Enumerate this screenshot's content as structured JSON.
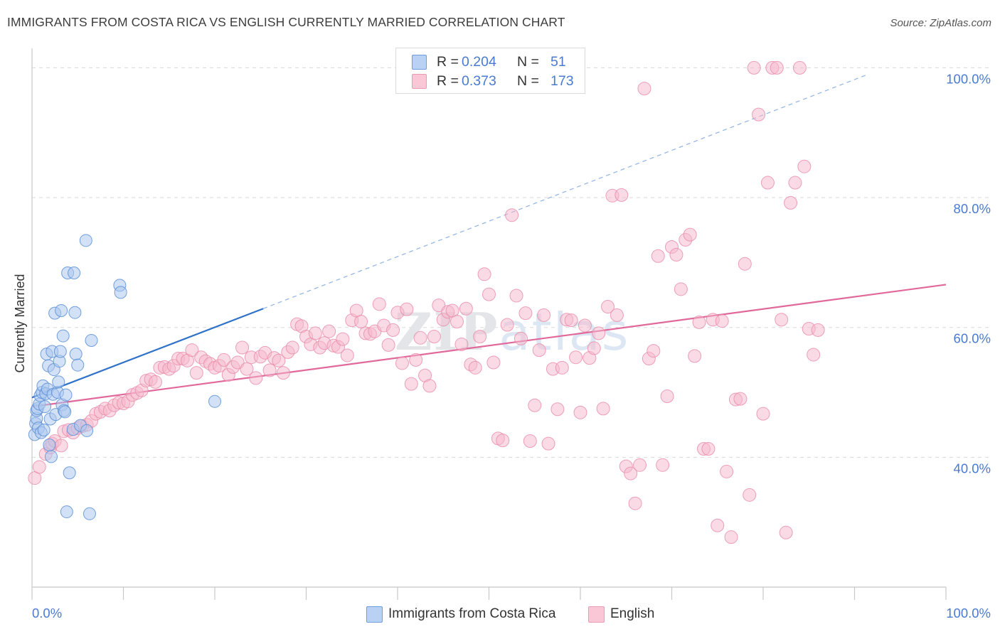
{
  "title": "IMMIGRANTS FROM COSTA RICA VS ENGLISH CURRENTLY MARRIED CORRELATION CHART",
  "source": "Source: ZipAtlas.com",
  "watermark": "ZIPatlas",
  "legend": {
    "rows": [
      {
        "r_label": "R =",
        "r_value": "0.204",
        "n_label": "N =",
        "n_value": "51"
      },
      {
        "r_label": "R =",
        "r_value": "0.373",
        "n_label": "N =",
        "n_value": "173"
      }
    ]
  },
  "bottom_legend": [
    "Immigrants from Costa Rica",
    "English"
  ],
  "colors": {
    "blue_fill": "#adc8ef",
    "blue_stroke": "#5b8fd6",
    "blue_line": "#2f72c8",
    "pink_fill": "#f6b8cc",
    "pink_stroke": "#e98aa8",
    "pink_line": "#e0689a",
    "tick_label": "#4a7bd0",
    "grid": "#d9d9d9"
  },
  "chart_data": {
    "type": "scatter",
    "title": "IMMIGRANTS FROM COSTA RICA VS ENGLISH CURRENTLY MARRIED CORRELATION CHART",
    "xlabel": "",
    "ylabel": "Currently Married",
    "xlim": [
      0,
      100
    ],
    "ylim": [
      20,
      103
    ],
    "x_tick_labels": [
      "0.0%",
      "100.0%"
    ],
    "y_ticks": [
      40,
      60,
      80,
      100
    ],
    "y_tick_labels": [
      "40.0%",
      "60.0%",
      "80.0%",
      "100.0%"
    ],
    "grid": "horizontal dashed",
    "series": [
      {
        "name": "Immigrants from Costa Rica",
        "r": 0.204,
        "n": 51,
        "trend": {
          "x": [
            0,
            25.3
          ],
          "y": [
            49.2,
            62.9
          ],
          "extended_x": [
            25.3,
            91.3
          ],
          "extended_y": [
            62.9,
            98.9
          ]
        },
        "points": [
          [
            0.3,
            43.5
          ],
          [
            0.4,
            45.2
          ],
          [
            0.5,
            46.0
          ],
          [
            0.5,
            47.2
          ],
          [
            0.6,
            47.5
          ],
          [
            0.7,
            44.5
          ],
          [
            0.8,
            48.2
          ],
          [
            0.9,
            49.5
          ],
          [
            1.0,
            43.8
          ],
          [
            1.1,
            50.0
          ],
          [
            1.2,
            51.0
          ],
          [
            1.3,
            44.2
          ],
          [
            1.4,
            47.8
          ],
          [
            1.5,
            49.8
          ],
          [
            1.6,
            55.9
          ],
          [
            1.7,
            50.5
          ],
          [
            1.8,
            54.1
          ],
          [
            1.9,
            41.9
          ],
          [
            2.0,
            45.9
          ],
          [
            2.1,
            40.1
          ],
          [
            2.2,
            56.3
          ],
          [
            2.3,
            49.7
          ],
          [
            2.4,
            53.5
          ],
          [
            2.5,
            62.2
          ],
          [
            2.6,
            46.6
          ],
          [
            2.8,
            50.0
          ],
          [
            2.9,
            51.6
          ],
          [
            3.0,
            54.8
          ],
          [
            3.1,
            56.3
          ],
          [
            3.2,
            62.6
          ],
          [
            3.3,
            48.1
          ],
          [
            3.4,
            58.7
          ],
          [
            3.5,
            47.2
          ],
          [
            3.6,
            47.0
          ],
          [
            3.7,
            49.6
          ],
          [
            3.8,
            31.6
          ],
          [
            3.9,
            68.4
          ],
          [
            4.1,
            37.6
          ],
          [
            4.5,
            44.3
          ],
          [
            4.6,
            68.4
          ],
          [
            4.7,
            62.3
          ],
          [
            4.8,
            55.9
          ],
          [
            5.0,
            54.2
          ],
          [
            5.3,
            44.9
          ],
          [
            5.9,
            73.4
          ],
          [
            6.0,
            44.1
          ],
          [
            6.3,
            31.3
          ],
          [
            6.5,
            58.0
          ],
          [
            9.6,
            66.5
          ],
          [
            9.7,
            65.4
          ],
          [
            20.0,
            48.6
          ]
        ]
      },
      {
        "name": "English",
        "r": 0.373,
        "n": 173,
        "trend": {
          "x": [
            0,
            100
          ],
          "y": [
            47.8,
            66.6
          ]
        },
        "points": [
          [
            0.3,
            36.8
          ],
          [
            0.8,
            38.5
          ],
          [
            1.5,
            40.5
          ],
          [
            2.0,
            41.5
          ],
          [
            2.2,
            42.1
          ],
          [
            2.5,
            42.5
          ],
          [
            3.2,
            41.8
          ],
          [
            3.5,
            44.0
          ],
          [
            4.0,
            44.2
          ],
          [
            4.5,
            43.8
          ],
          [
            5.0,
            44.5
          ],
          [
            5.5,
            44.8
          ],
          [
            6.0,
            45.0
          ],
          [
            6.5,
            45.6
          ],
          [
            7.0,
            46.7
          ],
          [
            7.5,
            47.0
          ],
          [
            8.0,
            47.5
          ],
          [
            8.5,
            47.2
          ],
          [
            9.0,
            48.0
          ],
          [
            9.5,
            48.4
          ],
          [
            10.0,
            48.3
          ],
          [
            10.5,
            48.6
          ],
          [
            11.0,
            49.6
          ],
          [
            11.5,
            49.9
          ],
          [
            12.0,
            50.3
          ],
          [
            12.5,
            51.8
          ],
          [
            13.0,
            52.0
          ],
          [
            13.5,
            51.6
          ],
          [
            14.0,
            53.8
          ],
          [
            14.5,
            53.9
          ],
          [
            15.0,
            53.6
          ],
          [
            15.5,
            54.1
          ],
          [
            16.0,
            55.2
          ],
          [
            16.5,
            55.2
          ],
          [
            17.0,
            54.9
          ],
          [
            17.5,
            56.5
          ],
          [
            18.0,
            53.0
          ],
          [
            18.5,
            55.4
          ],
          [
            19.0,
            54.8
          ],
          [
            19.5,
            54.4
          ],
          [
            20.0,
            53.8
          ],
          [
            20.5,
            54.1
          ],
          [
            21.0,
            55.0
          ],
          [
            21.5,
            52.7
          ],
          [
            22.0,
            53.9
          ],
          [
            22.5,
            54.6
          ],
          [
            23.0,
            56.9
          ],
          [
            23.5,
            53.6
          ],
          [
            24.0,
            55.4
          ],
          [
            24.5,
            52.2
          ],
          [
            25.0,
            55.5
          ],
          [
            25.5,
            56.1
          ],
          [
            26.0,
            53.4
          ],
          [
            26.5,
            55.3
          ],
          [
            27.0,
            54.9
          ],
          [
            27.5,
            53.0
          ],
          [
            28.0,
            56.2
          ],
          [
            28.5,
            56.9
          ],
          [
            29.0,
            60.5
          ],
          [
            29.5,
            60.2
          ],
          [
            30.0,
            58.6
          ],
          [
            30.5,
            57.4
          ],
          [
            31.0,
            59.1
          ],
          [
            31.5,
            56.9
          ],
          [
            32.0,
            57.6
          ],
          [
            32.5,
            59.4
          ],
          [
            33.0,
            57.2
          ],
          [
            33.5,
            57.0
          ],
          [
            34.0,
            58.2
          ],
          [
            34.5,
            55.7
          ],
          [
            35.0,
            61.1
          ],
          [
            35.5,
            62.6
          ],
          [
            36.0,
            60.9
          ],
          [
            36.5,
            59.1
          ],
          [
            37.0,
            59.0
          ],
          [
            37.5,
            59.4
          ],
          [
            38.0,
            63.6
          ],
          [
            38.5,
            60.3
          ],
          [
            39.0,
            57.3
          ],
          [
            39.5,
            59.6
          ],
          [
            40.0,
            62.3
          ],
          [
            40.5,
            54.5
          ],
          [
            41.0,
            62.8
          ],
          [
            41.5,
            51.3
          ],
          [
            42.0,
            55.0
          ],
          [
            42.5,
            58.4
          ],
          [
            43.0,
            52.6
          ],
          [
            43.5,
            51.0
          ],
          [
            44.0,
            58.6
          ],
          [
            44.5,
            63.4
          ],
          [
            45.0,
            61.2
          ],
          [
            45.5,
            62.4
          ],
          [
            46.0,
            62.6
          ],
          [
            46.5,
            60.9
          ],
          [
            47.0,
            57.4
          ],
          [
            47.5,
            62.9
          ],
          [
            48.0,
            54.3
          ],
          [
            48.5,
            53.8
          ],
          [
            49.0,
            58.6
          ],
          [
            49.5,
            68.2
          ],
          [
            50.0,
            65.1
          ],
          [
            50.5,
            54.6
          ],
          [
            51.0,
            42.9
          ],
          [
            51.5,
            42.6
          ],
          [
            52.0,
            60.4
          ],
          [
            52.5,
            77.3
          ],
          [
            53.0,
            64.9
          ],
          [
            53.5,
            58.3
          ],
          [
            54.0,
            62.2
          ],
          [
            54.5,
            42.5
          ],
          [
            55.0,
            48.0
          ],
          [
            55.5,
            56.5
          ],
          [
            56.0,
            61.9
          ],
          [
            56.5,
            42.1
          ],
          [
            57.0,
            53.6
          ],
          [
            57.5,
            47.4
          ],
          [
            58.0,
            53.8
          ],
          [
            58.5,
            61.2
          ],
          [
            59.0,
            61.1
          ],
          [
            59.5,
            55.4
          ],
          [
            60.0,
            46.9
          ],
          [
            60.5,
            60.3
          ],
          [
            61.0,
            55.3
          ],
          [
            61.5,
            56.8
          ],
          [
            62.0,
            59.1
          ],
          [
            62.5,
            47.5
          ],
          [
            63.0,
            63.2
          ],
          [
            63.5,
            80.3
          ],
          [
            64.0,
            61.9
          ],
          [
            64.5,
            80.4
          ],
          [
            65.0,
            38.6
          ],
          [
            65.5,
            37.5
          ],
          [
            66.0,
            32.9
          ],
          [
            66.5,
            38.8
          ],
          [
            67.0,
            96.8
          ],
          [
            67.5,
            55.2
          ],
          [
            68.0,
            56.4
          ],
          [
            68.5,
            71.0
          ],
          [
            69.0,
            38.8
          ],
          [
            69.5,
            49.4
          ],
          [
            70.0,
            72.4
          ],
          [
            70.5,
            71.2
          ],
          [
            71.0,
            65.9
          ],
          [
            71.5,
            73.5
          ],
          [
            72.0,
            74.3
          ],
          [
            72.5,
            55.6
          ],
          [
            73.0,
            60.8
          ],
          [
            73.5,
            41.3
          ],
          [
            74.0,
            41.3
          ],
          [
            74.5,
            61.2
          ],
          [
            75.0,
            29.5
          ],
          [
            75.5,
            61.0
          ],
          [
            76.0,
            37.8
          ],
          [
            76.5,
            27.7
          ],
          [
            77.0,
            48.9
          ],
          [
            77.5,
            49.0
          ],
          [
            78.0,
            69.8
          ],
          [
            78.5,
            34.2
          ],
          [
            79.0,
            100.0
          ],
          [
            79.5,
            92.8
          ],
          [
            80.0,
            46.7
          ],
          [
            80.5,
            82.3
          ],
          [
            81.0,
            100.0
          ],
          [
            81.5,
            100.0
          ],
          [
            82.0,
            61.2
          ],
          [
            82.5,
            28.4
          ],
          [
            83.0,
            79.2
          ],
          [
            83.5,
            82.3
          ],
          [
            84.0,
            100.0
          ],
          [
            84.5,
            84.8
          ],
          [
            85.0,
            59.8
          ],
          [
            85.5,
            55.8
          ],
          [
            86.0,
            59.6
          ]
        ]
      }
    ]
  }
}
